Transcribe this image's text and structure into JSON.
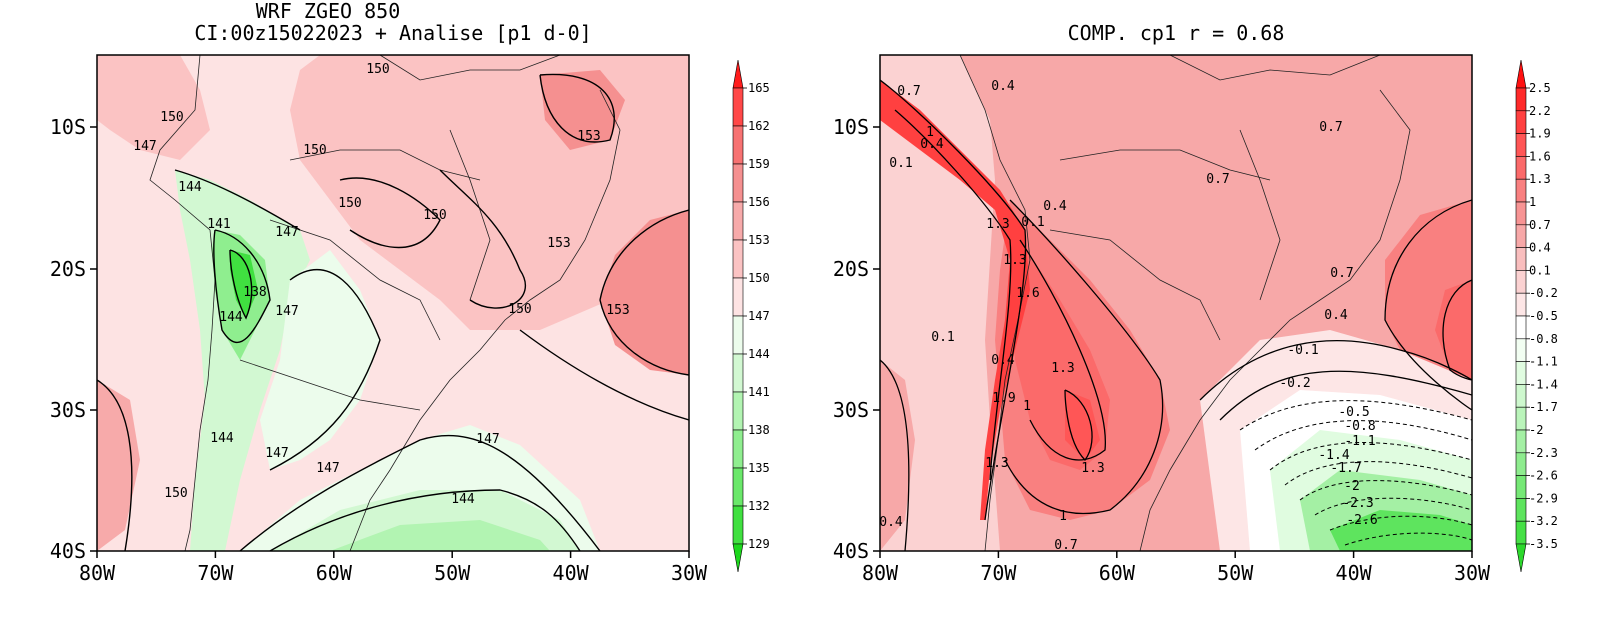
{
  "maps": [
    {
      "title_line1": "WRF ZGEO 850",
      "title_line2": "CI:00z15022023 + Analise  [p1 d-0]",
      "x_ticks": [
        "80W",
        "70W",
        "60W",
        "50W",
        "40W",
        "30W"
      ],
      "y_ticks": [
        "10S",
        "20S",
        "30S",
        "40S"
      ],
      "colorbar": {
        "levels": [
          "165",
          "162",
          "159",
          "156",
          "153",
          "150",
          "147",
          "144",
          "141",
          "138",
          "135",
          "132",
          "129"
        ],
        "colors": [
          "#ff1c1c",
          "#ff4848",
          "#f77272",
          "#f59090",
          "#f7aaaa",
          "#fbc3c3",
          "#fde3e3",
          "#ecfcec",
          "#d2f8d2",
          "#b2f4b2",
          "#8fee8f",
          "#6ae86a",
          "#40e040",
          "#1cd81c"
        ]
      },
      "contour_labels": [
        "150",
        "150",
        "150",
        "150",
        "150",
        "147",
        "147",
        "144",
        "141",
        "138",
        "144",
        "147",
        "153",
        "153",
        "153",
        "150",
        "147",
        "144",
        "144",
        "147",
        "147",
        "150"
      ]
    },
    {
      "title": "COMP. cp1  r =  0.68",
      "x_ticks": [
        "80W",
        "70W",
        "60W",
        "50W",
        "40W",
        "30W"
      ],
      "y_ticks": [
        "10S",
        "20S",
        "30S",
        "40S"
      ],
      "colorbar": {
        "levels": [
          "2.5",
          "2.2",
          "1.9",
          "1.6",
          "1.3",
          "1",
          "0.7",
          "0.4",
          "0.1",
          "-0.2",
          "-0.5",
          "-0.8",
          "-1.1",
          "-1.4",
          "-1.7",
          "-2",
          "-2.3",
          "-2.6",
          "-2.9",
          "-3.2",
          "-3.5"
        ],
        "colors": [
          "#ff1010",
          "#ff2a2a",
          "#ff4040",
          "#ff5656",
          "#fb6a6a",
          "#f98080",
          "#f79494",
          "#f7a8a8",
          "#f9bebe",
          "#fbd2d2",
          "#fde6e6",
          "#ffffff",
          "#f2fef2",
          "#e0fce0",
          "#cef8ce",
          "#baf4ba",
          "#a4f0a4",
          "#8eec8e",
          "#76e876",
          "#5ee45e",
          "#46e046",
          "#2cd82c"
        ]
      },
      "contour_labels": [
        "0.7",
        "0.4",
        "1",
        "0.4",
        "0.1",
        "1.3",
        "0.1",
        "0.4",
        "1.3",
        "1.6",
        "0.4",
        "0.1",
        "1.3",
        "1.9",
        "1",
        "1.3",
        "1.3",
        "1",
        "0.7",
        "0.4",
        "0.7",
        "0.7",
        "0.7",
        "0.4",
        "-0.1",
        "-0.2",
        "-0.5",
        "-0.8",
        "-1.1",
        "-1.4",
        "-1.7",
        "-2",
        "-2.3",
        "-2.6"
      ]
    }
  ]
}
